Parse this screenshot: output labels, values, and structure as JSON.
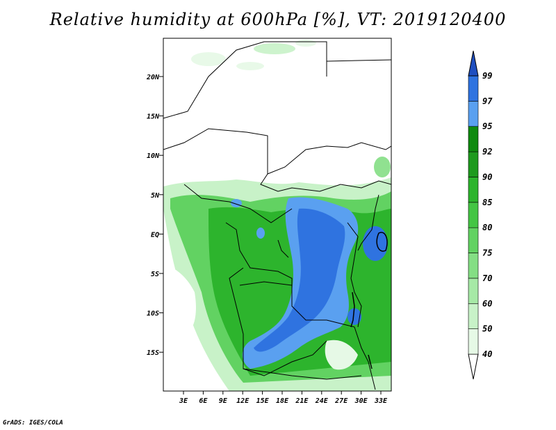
{
  "title": "Relative humidity at 600hPa [%], VT: 2019120400",
  "credit": "GrADS: IGES/COLA",
  "map": {
    "lat_labels": [
      "20N",
      "15N",
      "10N",
      "5N",
      "EQ",
      "5S",
      "10S",
      "15S"
    ],
    "lon_labels": [
      "3E",
      "6E",
      "9E",
      "12E",
      "15E",
      "18E",
      "21E",
      "24E",
      "27E",
      "30E",
      "33E"
    ]
  },
  "colorbar": {
    "levels": [
      "40",
      "50",
      "60",
      "70",
      "75",
      "80",
      "85",
      "90",
      "92",
      "95",
      "97",
      "99"
    ],
    "colors": [
      "#ffffff",
      "#e6f9e6",
      "#c8f2c8",
      "#a6e9a6",
      "#84de84",
      "#62d262",
      "#44c544",
      "#2db42d",
      "#1e9a1e",
      "#0f8a0f",
      "#5aa0f0",
      "#2f73e0",
      "#1f4fc0"
    ]
  }
}
